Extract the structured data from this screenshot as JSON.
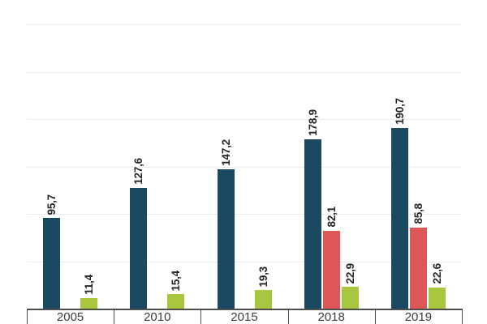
{
  "chart_data": {
    "type": "bar",
    "categories": [
      "2005",
      "2010",
      "2015",
      "2018",
      "2019"
    ],
    "series": [
      {
        "name": "dark-blue",
        "color": "#1c4962",
        "values": [
          95.7,
          127.6,
          147.2,
          178.9,
          190.7
        ],
        "value_labels": [
          "95,7",
          "127,6",
          "147,2",
          "178,9",
          "190,7"
        ]
      },
      {
        "name": "red",
        "color": "#dd5757",
        "values": [
          null,
          null,
          null,
          82.1,
          85.8
        ],
        "value_labels": [
          null,
          null,
          null,
          "82,1",
          "85,8"
        ]
      },
      {
        "name": "green",
        "color": "#a9c63f",
        "values": [
          11.4,
          15.4,
          19.3,
          22.9,
          22.6
        ],
        "value_labels": [
          "11,4",
          "15,4",
          "19,3",
          "22,9",
          "22,6"
        ]
      }
    ],
    "ylim": [
      0,
      300
    ],
    "gridline_step": 50,
    "grid": true,
    "legend": "none",
    "y_axis_tick_labels_visible": false,
    "value_labels_rotated_degrees": -90,
    "decimal_separator": ","
  },
  "style": {
    "background": "#ffffff",
    "gridline_color": "#ececec",
    "axis_line_color": "#4f4f4f",
    "x_label_color": "#3a3a3a",
    "value_label_color": "#262626"
  }
}
